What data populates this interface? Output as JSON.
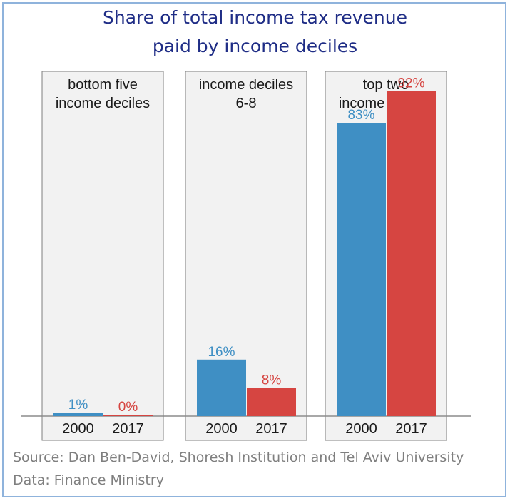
{
  "title_lines": [
    "Share of total income tax revenue",
    "paid by income deciles"
  ],
  "source_lines": [
    "Source: Dan Ben-David, Shoresh Institution and Tel Aviv University",
    "Data: Finance Ministry"
  ],
  "chart_data": {
    "type": "bar",
    "title": "Share of total income tax revenue paid by income deciles",
    "ylim": [
      0,
      100
    ],
    "unit": "%",
    "categories": [
      "2000",
      "2017"
    ],
    "series_colors": {
      "2000": "#3f8fc4",
      "2017": "#d64541"
    },
    "grid": false,
    "panels": [
      {
        "label_lines": [
          "bottom five",
          "income deciles"
        ],
        "values": [
          1,
          0
        ],
        "value_labels": [
          "1%",
          "0%"
        ]
      },
      {
        "label_lines": [
          "income deciles",
          "6-8"
        ],
        "values": [
          16,
          8
        ],
        "value_labels": [
          "16%",
          "8%"
        ]
      },
      {
        "label_lines": [
          "top two",
          "income deciles"
        ],
        "values": [
          83,
          92
        ],
        "value_labels": [
          "83%",
          "92%"
        ]
      }
    ]
  }
}
